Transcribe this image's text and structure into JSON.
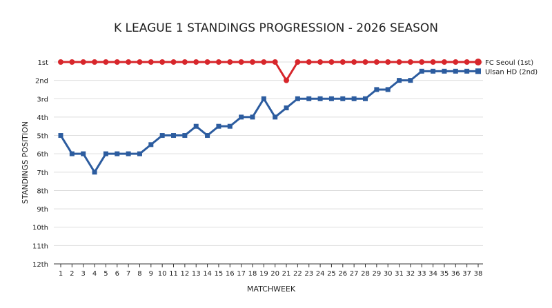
{
  "chart_data": {
    "type": "line",
    "title": "K LEAGUE 1 STANDINGS PROGRESSION - 2026 SEASON",
    "xlabel": "MATCHWEEK",
    "ylabel": "STANDINGS POSITION",
    "x": [
      1,
      2,
      3,
      4,
      5,
      6,
      7,
      8,
      9,
      10,
      11,
      12,
      13,
      14,
      15,
      16,
      17,
      18,
      19,
      20,
      21,
      22,
      23,
      24,
      25,
      26,
      27,
      28,
      29,
      30,
      31,
      32,
      33,
      34,
      35,
      36,
      37,
      38
    ],
    "y_ticks": [
      "1st",
      "2nd",
      "3rd",
      "4th",
      "5th",
      "6th",
      "7th",
      "8th",
      "9th",
      "10th",
      "11th",
      "12th"
    ],
    "ylim": [
      1,
      12
    ],
    "y_inverted": true,
    "grid": "horizontal",
    "legend_position": "right",
    "series": [
      {
        "name": "FC Seoul (1st)",
        "color": "#d7262b",
        "marker": "circle",
        "values": [
          1,
          1,
          1,
          1,
          1,
          1,
          1,
          1,
          1,
          1,
          1,
          1,
          1,
          1,
          1,
          1,
          1,
          1,
          1,
          1,
          2,
          1,
          1,
          1,
          1,
          1,
          1,
          1,
          1,
          1,
          1,
          1,
          1,
          1,
          1,
          1,
          1,
          1
        ]
      },
      {
        "name": "Ulsan HD (2nd)",
        "color": "#2c5c9f",
        "marker": "square",
        "values": [
          5,
          6,
          6,
          7,
          6,
          6,
          6,
          6,
          5.5,
          5,
          5,
          5,
          4.5,
          5,
          4.5,
          4.5,
          4,
          4,
          3,
          4,
          3.5,
          3,
          3,
          3,
          3,
          3,
          3,
          3,
          2.5,
          2.5,
          2,
          2,
          1.5,
          1.5,
          1.5,
          1.5,
          1.5,
          1.5
        ]
      }
    ]
  }
}
